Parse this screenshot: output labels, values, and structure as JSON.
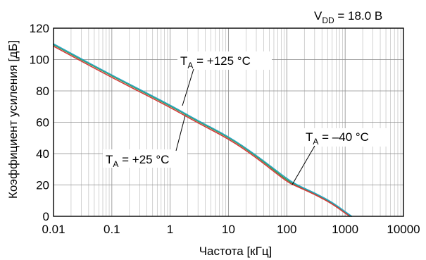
{
  "chart_data": {
    "type": "line",
    "title": "",
    "xlabel": "Частота [кГц]",
    "ylabel": "Коэффициент усиления [дБ]",
    "xscale": "log",
    "xlim": [
      0.01,
      10000
    ],
    "ylim": [
      0,
      120
    ],
    "grid": true,
    "x_ticks": [
      "0.01",
      "0.1",
      "1",
      "10",
      "100",
      "1000",
      "10000"
    ],
    "y_ticks": [
      "0",
      "20",
      "40",
      "60",
      "80",
      "100",
      "120"
    ],
    "condition": {
      "main": "V",
      "sub": "DD",
      "rest": " = 18.0 В"
    },
    "colors": {
      "plus125": "#2aa6c4",
      "plus25": "#3a9a4a",
      "minus40": "#d23a3a"
    },
    "series": [
      {
        "key": "plus125",
        "label_main": "T",
        "label_sub": "A",
        "label_rest": " = +125 °C",
        "points": [
          [
            0.01,
            110
          ],
          [
            0.1,
            90
          ],
          [
            1,
            71
          ],
          [
            3,
            61
          ],
          [
            10,
            51
          ],
          [
            30,
            39
          ],
          [
            100,
            24
          ],
          [
            150,
            20
          ],
          [
            300,
            15
          ],
          [
            600,
            9
          ],
          [
            1000,
            3
          ],
          [
            1300,
            0
          ]
        ]
      },
      {
        "key": "plus25",
        "label_main": "T",
        "label_sub": "A",
        "label_rest": " = +25 °C",
        "points": [
          [
            0.01,
            109.5
          ],
          [
            0.1,
            89.5
          ],
          [
            1,
            70.5
          ],
          [
            3,
            60.5
          ],
          [
            10,
            50.5
          ],
          [
            30,
            38.5
          ],
          [
            100,
            23
          ],
          [
            150,
            19.5
          ],
          [
            300,
            14.5
          ],
          [
            600,
            8.5
          ],
          [
            1000,
            2.5
          ],
          [
            1250,
            0
          ]
        ]
      },
      {
        "key": "minus40",
        "label_main": "T",
        "label_sub": "A",
        "label_rest": " = –40 °C",
        "points": [
          [
            0.01,
            108.5
          ],
          [
            0.1,
            88.5
          ],
          [
            1,
            69.5
          ],
          [
            3,
            59.5
          ],
          [
            10,
            49.5
          ],
          [
            30,
            37.5
          ],
          [
            100,
            22
          ],
          [
            150,
            19
          ],
          [
            300,
            14
          ],
          [
            600,
            8
          ],
          [
            1000,
            2
          ],
          [
            1200,
            0
          ]
        ]
      }
    ]
  }
}
